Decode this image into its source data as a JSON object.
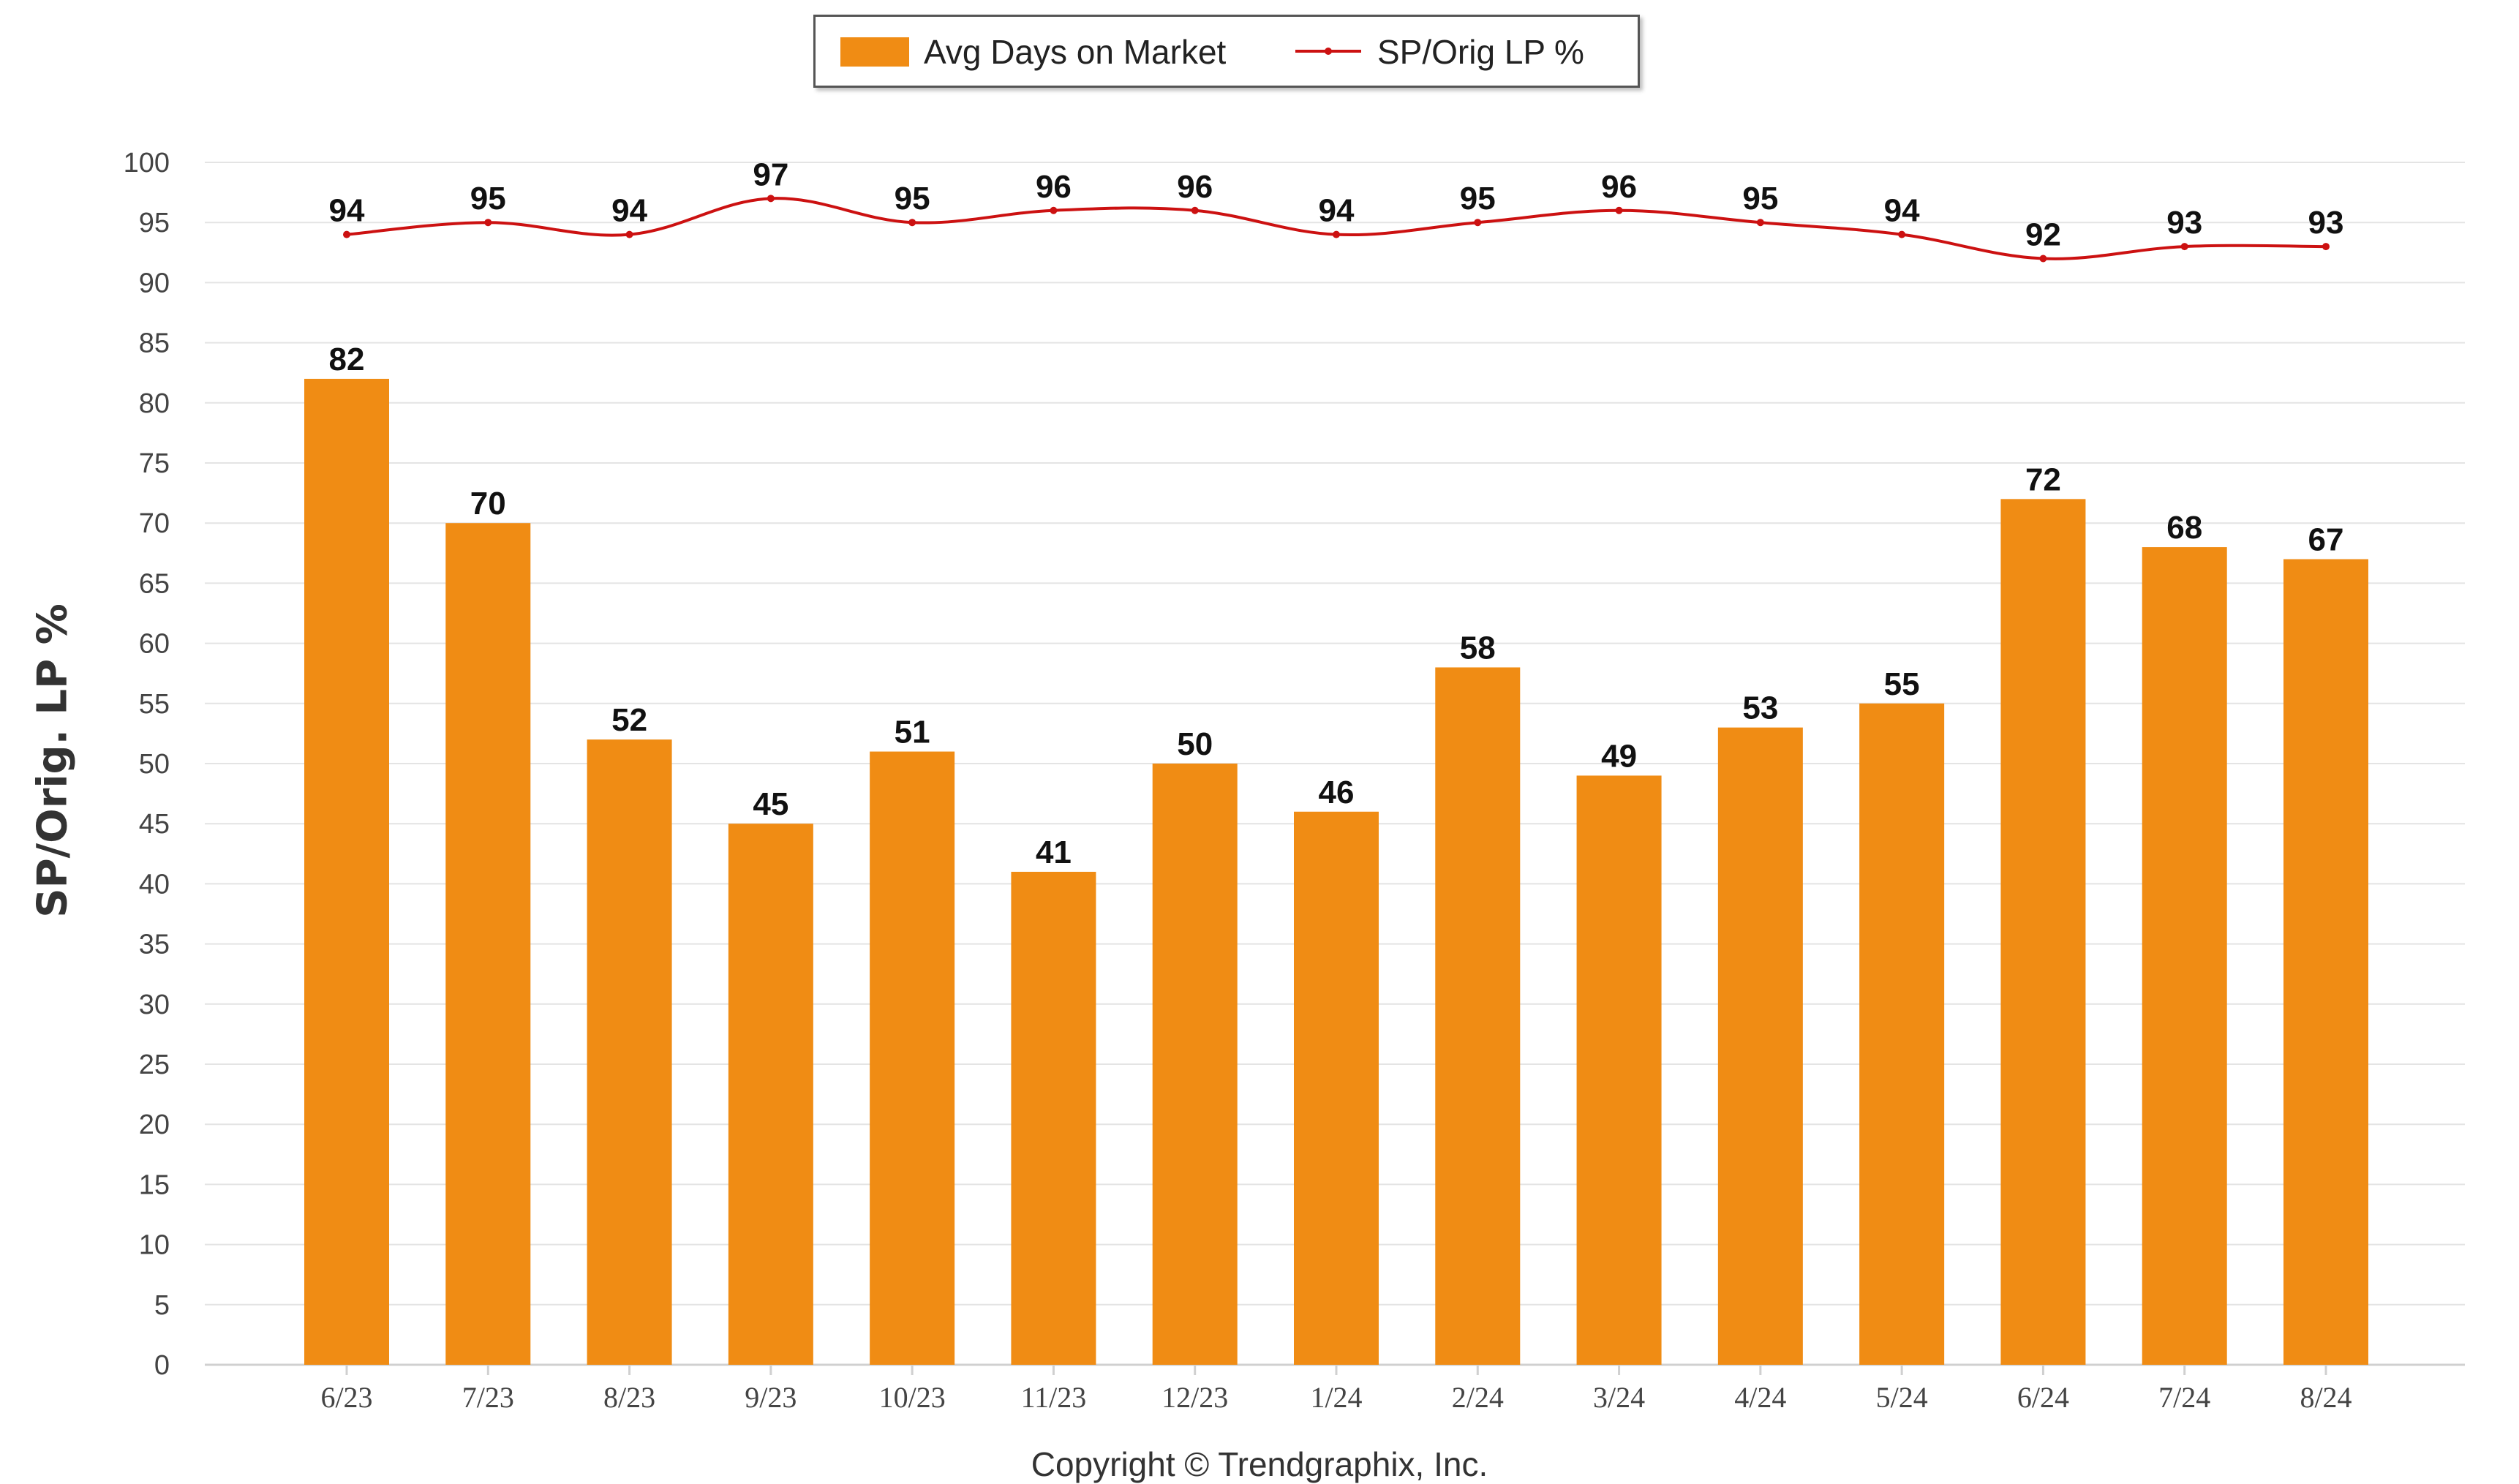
{
  "chart_data": {
    "type": "bar",
    "ylabel": "SP/Orig. LP %",
    "ylim": [
      0,
      100
    ],
    "ytick_step": 5,
    "grid": true,
    "legend_position": "top-center",
    "categories": [
      "6/23",
      "7/23",
      "8/23",
      "9/23",
      "10/23",
      "11/23",
      "12/23",
      "1/24",
      "2/24",
      "3/24",
      "4/24",
      "5/24",
      "6/24",
      "7/24",
      "8/24"
    ],
    "series": [
      {
        "name": "Avg Days on Market",
        "kind": "bar",
        "color": "#f08c14",
        "values": [
          82,
          70,
          52,
          45,
          51,
          41,
          50,
          46,
          58,
          49,
          53,
          55,
          72,
          68,
          67
        ]
      },
      {
        "name": "SP/Orig LP %",
        "kind": "line",
        "color": "#cc1111",
        "values": [
          94,
          95,
          94,
          97,
          95,
          96,
          96,
          94,
          95,
          96,
          95,
          94,
          92,
          93,
          93
        ]
      }
    ]
  },
  "legend": {
    "bar_label": "Avg Days on Market",
    "line_label": "SP/Orig LP %"
  },
  "footer": "Copyright © Trendgraphix, Inc."
}
